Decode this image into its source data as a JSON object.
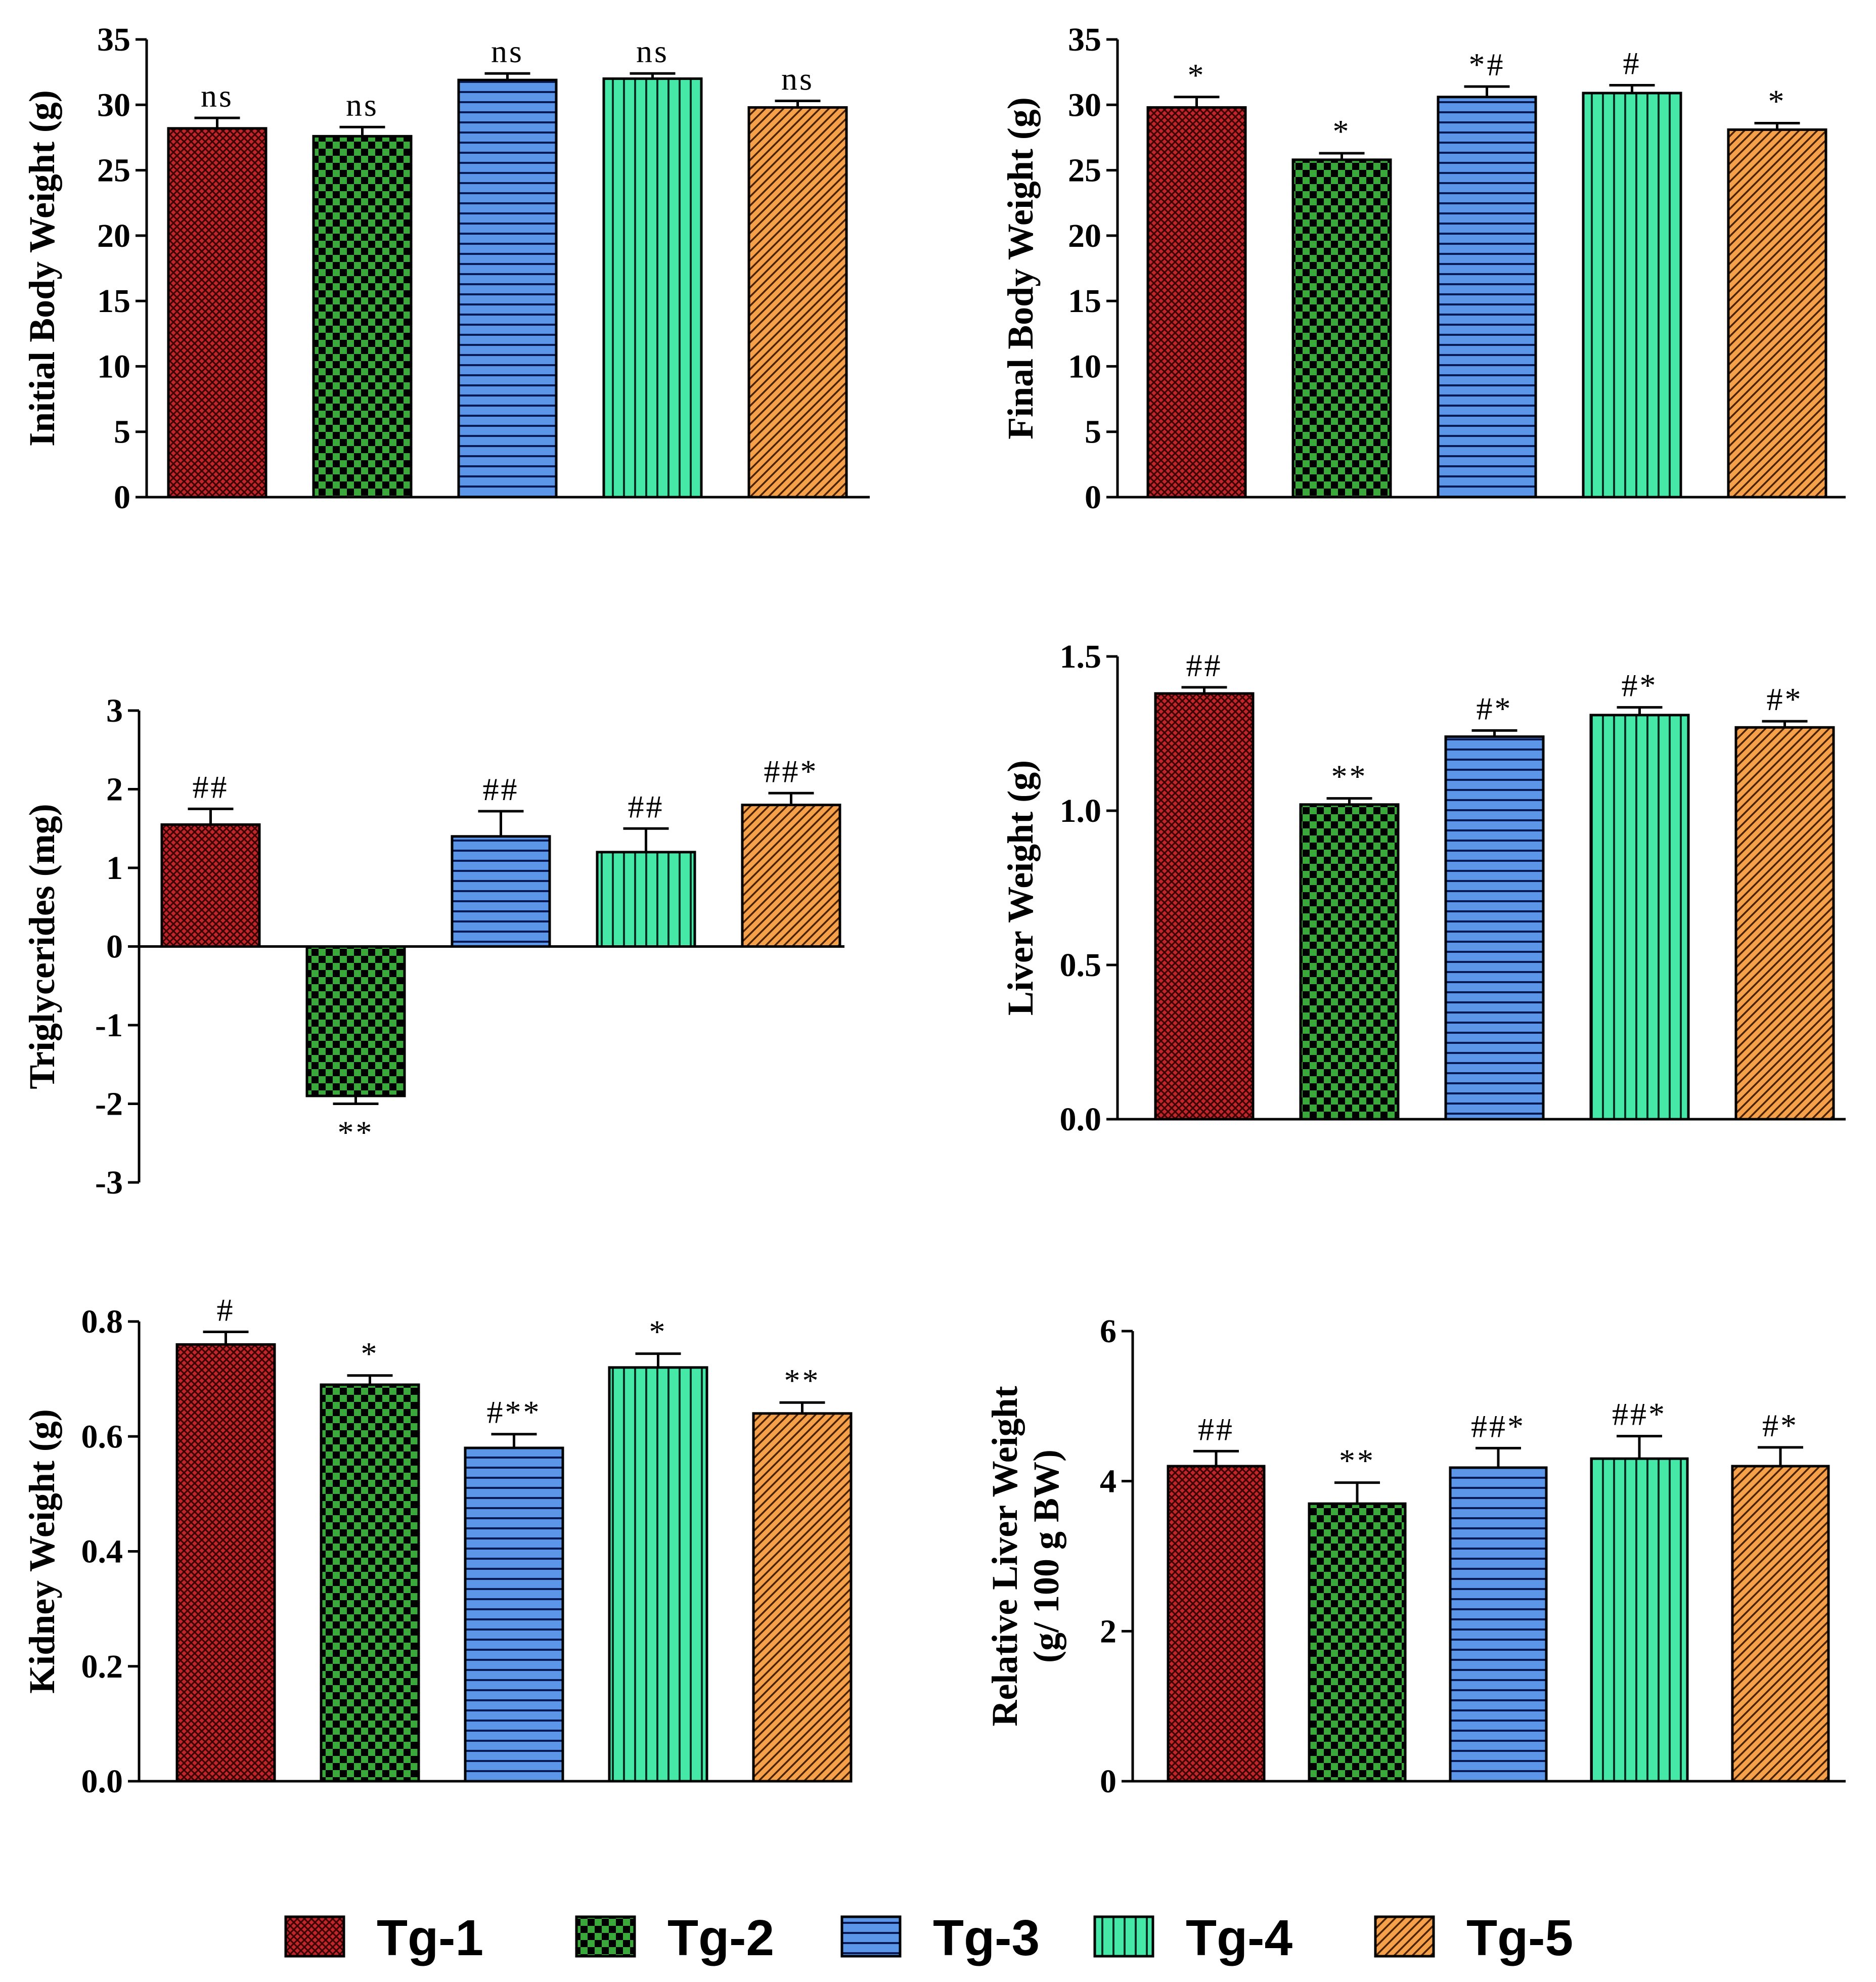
{
  "colors": {
    "Tg-1": {
      "base": "#c0262a",
      "ink": "#3a0000"
    },
    "Tg-2": {
      "base": "#3aa83a",
      "ink": "#000000"
    },
    "Tg-3": {
      "base": "#5b96e8",
      "ink": "#0a1a55"
    },
    "Tg-4": {
      "base": "#46e8a8",
      "ink": "#063022"
    },
    "Tg-5": {
      "base": "#f5a04a",
      "ink": "#4a2200"
    }
  },
  "legend": {
    "items": [
      {
        "label": "Tg-1",
        "icon": "crosshatch-swatch-icon"
      },
      {
        "label": "Tg-2",
        "icon": "checkerboard-swatch-icon"
      },
      {
        "label": "Tg-3",
        "icon": "horizontal-lines-swatch-icon"
      },
      {
        "label": "Tg-4",
        "icon": "vertical-lines-swatch-icon"
      },
      {
        "label": "Tg-5",
        "icon": "diagonal-lines-swatch-icon"
      }
    ]
  },
  "chart_data": [
    {
      "type": "bar",
      "title": "",
      "ylabel": [
        "Initial Body  Weight (g)"
      ],
      "categories": [
        "Tg-1",
        "Tg-2",
        "Tg-3",
        "Tg-4",
        "Tg-5"
      ],
      "values": [
        28.2,
        27.6,
        31.9,
        32.0,
        29.8
      ],
      "errors": [
        0.8,
        0.7,
        0.5,
        0.4,
        0.5
      ],
      "annotations": [
        "ns",
        "ns",
        "ns",
        "ns",
        "ns"
      ],
      "ylim": [
        0,
        35
      ],
      "yticks": [
        0,
        5,
        10,
        15,
        20,
        25,
        30,
        35
      ],
      "ytick_labels": [
        "0",
        "5",
        "10",
        "15",
        "20",
        "25",
        "30",
        "35"
      ]
    },
    {
      "type": "bar",
      "title": "",
      "ylabel": [
        "Final Body  Weight (g)"
      ],
      "categories": [
        "Tg-1",
        "Tg-2",
        "Tg-3",
        "Tg-4",
        "Tg-5"
      ],
      "values": [
        29.8,
        25.8,
        30.6,
        30.9,
        28.1
      ],
      "errors": [
        0.8,
        0.5,
        0.8,
        0.6,
        0.5
      ],
      "annotations": [
        "*",
        "*",
        "*#",
        "#",
        "*"
      ],
      "ylim": [
        0,
        35
      ],
      "yticks": [
        0,
        5,
        10,
        15,
        20,
        25,
        30,
        35
      ],
      "ytick_labels": [
        "0",
        "5",
        "10",
        "15",
        "20",
        "25",
        "30",
        "35"
      ]
    },
    {
      "type": "bar",
      "title": "",
      "ylabel": [
        "Triglycerides (mg)"
      ],
      "categories": [
        "Tg-1",
        "Tg-2",
        "Tg-3",
        "Tg-4",
        "Tg-5"
      ],
      "values": [
        1.55,
        -1.9,
        1.4,
        1.2,
        1.8
      ],
      "errors": [
        0.2,
        0.1,
        0.32,
        0.3,
        0.15
      ],
      "annotations": [
        "##",
        "**",
        "##",
        "##",
        "##*"
      ],
      "ylim": [
        -3,
        3
      ],
      "yticks": [
        -3,
        -2,
        -1,
        0,
        1,
        2,
        3
      ],
      "ytick_labels": [
        "-3",
        "-2",
        "-1",
        "0",
        "1",
        "2",
        "3"
      ]
    },
    {
      "type": "bar",
      "title": "",
      "ylabel": [
        "Liver Weight (g)"
      ],
      "categories": [
        "Tg-1",
        "Tg-2",
        "Tg-3",
        "Tg-4",
        "Tg-5"
      ],
      "values": [
        1.38,
        1.02,
        1.24,
        1.31,
        1.27
      ],
      "errors": [
        0.02,
        0.02,
        0.02,
        0.025,
        0.02
      ],
      "annotations": [
        "##",
        "**",
        "#*",
        "#*",
        "#*"
      ],
      "ylim": [
        0,
        1.5
      ],
      "yticks": [
        0,
        0.5,
        1.0,
        1.5
      ],
      "ytick_labels": [
        "0.0",
        "0.5",
        "1.0",
        "1.5"
      ]
    },
    {
      "type": "bar",
      "title": "",
      "ylabel": [
        "Kidney Weight (g)"
      ],
      "categories": [
        "Tg-1",
        "Tg-2",
        "Tg-3",
        "Tg-4",
        "Tg-5"
      ],
      "values": [
        0.76,
        0.69,
        0.58,
        0.72,
        0.64
      ],
      "errors": [
        0.022,
        0.016,
        0.024,
        0.024,
        0.019
      ],
      "annotations": [
        "#",
        "*",
        "#**",
        "*",
        "**"
      ],
      "ylim": [
        0,
        0.8
      ],
      "yticks": [
        0,
        0.2,
        0.4,
        0.6,
        0.8
      ],
      "ytick_labels": [
        "0.0",
        "0.2",
        "0.4",
        "0.6",
        "0.8"
      ]
    },
    {
      "type": "bar",
      "title": "",
      "ylabel": [
        "Relative Liver Weight",
        "(g/ 100 g BW)"
      ],
      "categories": [
        "Tg-1",
        "Tg-2",
        "Tg-3",
        "Tg-4",
        "Tg-5"
      ],
      "values": [
        4.2,
        3.7,
        4.18,
        4.3,
        4.2
      ],
      "errors": [
        0.2,
        0.28,
        0.26,
        0.3,
        0.25
      ],
      "annotations": [
        "##",
        "**",
        "##*",
        "##*",
        "#*"
      ],
      "ylim": [
        0,
        6
      ],
      "yticks": [
        0,
        2,
        4,
        6
      ],
      "ytick_labels": [
        "0",
        "2",
        "4",
        "6"
      ]
    }
  ]
}
